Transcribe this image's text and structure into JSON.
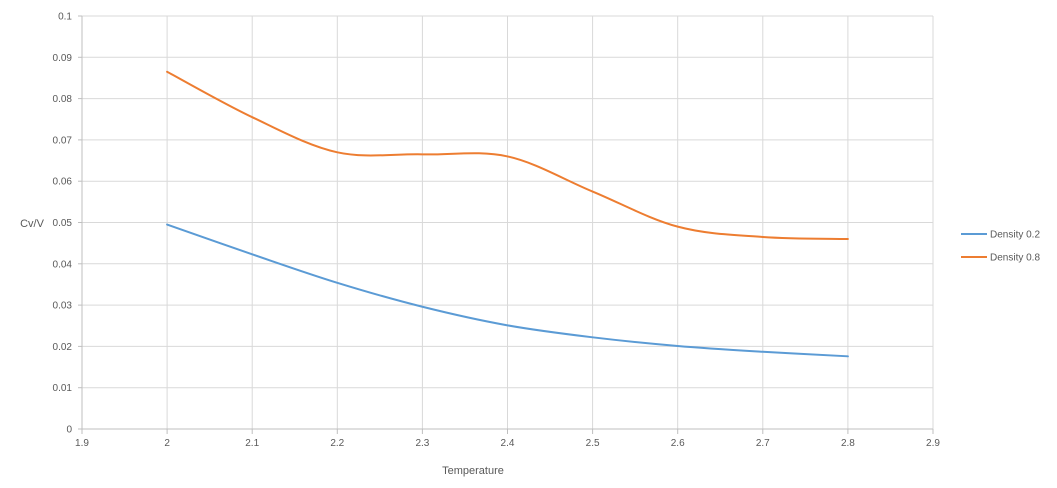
{
  "chart_data": {
    "type": "line",
    "xlabel": "Temperature",
    "ylabel": "Cv/V",
    "xlim": [
      1.9,
      2.9
    ],
    "ylim": [
      0,
      0.1
    ],
    "xticks": [
      "1.9",
      "2",
      "2.1",
      "2.2",
      "2.3",
      "2.4",
      "2.5",
      "2.6",
      "2.7",
      "2.8",
      "2.9"
    ],
    "yticks": [
      "0",
      "0.01",
      "0.02",
      "0.03",
      "0.04",
      "0.05",
      "0.06",
      "0.07",
      "0.08",
      "0.09",
      "0.1"
    ],
    "grid": true,
    "legend_position": "right",
    "series": [
      {
        "name": "Density 0.2",
        "color": "#5b9bd5",
        "x": [
          2.0,
          2.1,
          2.2,
          2.3,
          2.4,
          2.5,
          2.6,
          2.7,
          2.8
        ],
        "y": [
          0.0495,
          0.0423,
          0.0354,
          0.0296,
          0.0251,
          0.0222,
          0.0201,
          0.0187,
          0.0176
        ]
      },
      {
        "name": "Density 0.8",
        "color": "#ed7d31",
        "x": [
          2.0,
          2.1,
          2.2,
          2.3,
          2.4,
          2.5,
          2.6,
          2.7,
          2.8
        ],
        "y": [
          0.0865,
          0.0755,
          0.067,
          0.0665,
          0.066,
          0.0575,
          0.049,
          0.0465,
          0.046
        ]
      }
    ]
  }
}
